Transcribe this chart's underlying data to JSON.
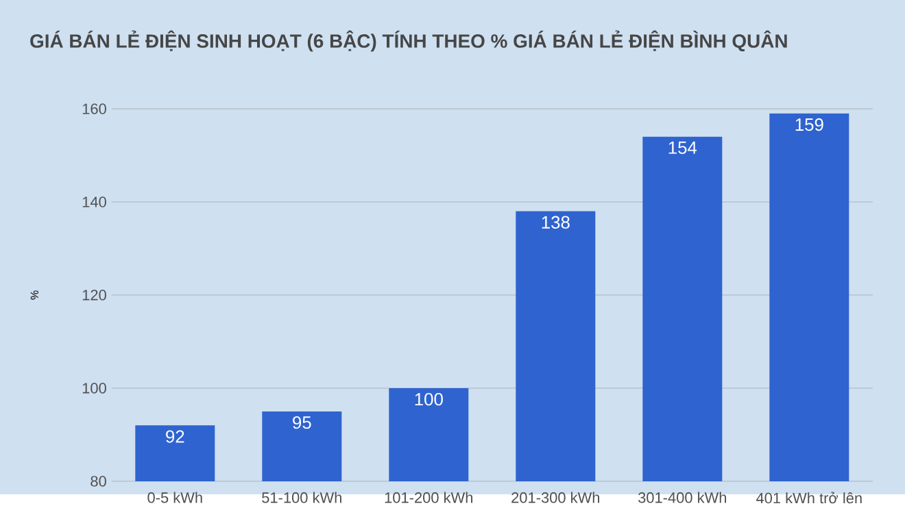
{
  "chart_data": {
    "type": "bar",
    "title": "GIÁ BÁN LẺ ĐIỆN SINH HOẠT (6 BẬC) TÍNH THEO % GIÁ BÁN LẺ ĐIỆN BÌNH QUÂN",
    "ylabel": "%",
    "categories": [
      "0-5 kWh",
      "51-100 kWh",
      "101-200 kWh",
      "201-300 kWh",
      "301-400 kWh",
      "401 kWh trở lên"
    ],
    "values": [
      92,
      95,
      100,
      138,
      154,
      159
    ],
    "color": "#2f63cf",
    "data_labels": true,
    "ylim": [
      80,
      160
    ],
    "yticks": [
      80,
      100,
      120,
      140,
      160
    ],
    "grid": "y"
  }
}
